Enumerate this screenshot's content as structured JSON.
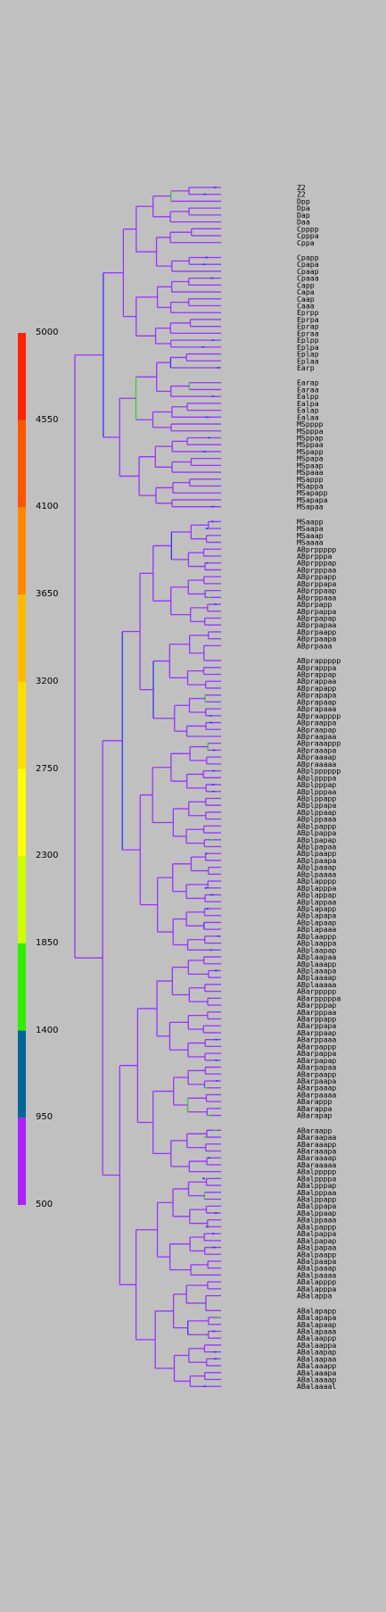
{
  "chart_data": {
    "type": "dendrogram",
    "title": "",
    "color_scale": {
      "labels": [
        "5000",
        "4550",
        "4100",
        "3650",
        "3200",
        "2750",
        "2300",
        "1850",
        "1400",
        "950",
        "500"
      ],
      "bands": [
        {
          "from": 4550,
          "to": 5000,
          "color": "#ff2200"
        },
        {
          "from": 4100,
          "to": 4550,
          "color": "#ff5500"
        },
        {
          "from": 3650,
          "to": 4100,
          "color": "#ff8800"
        },
        {
          "from": 3200,
          "to": 3650,
          "color": "#ffbb00"
        },
        {
          "from": 2750,
          "to": 3200,
          "color": "#ffdd00"
        },
        {
          "from": 2300,
          "to": 2750,
          "color": "#ffff00"
        },
        {
          "from": 1850,
          "to": 2300,
          "color": "#ccff00"
        },
        {
          "from": 1400,
          "to": 1850,
          "color": "#33ee00"
        },
        {
          "from": 950,
          "to": 1400,
          "color": "#006699"
        },
        {
          "from": 500,
          "to": 950,
          "color": "#aa22ff"
        }
      ]
    },
    "branch_color": "#9933ff",
    "highlight_colors": [
      "#3333ff",
      "#33cc33"
    ],
    "leaves": [
      {
        "group": 0,
        "names": [
          "Z2",
          "Z2",
          "Dpp",
          "Dpa",
          "Dap",
          "Daa",
          "Cpppp",
          "Cpppa",
          "Cppa"
        ]
      },
      {
        "group": 1,
        "names": [
          "Cpapp",
          "Cpapa",
          "Cpaap",
          "Cpaaa",
          "Capp",
          "Capa",
          "Caap",
          "Caaa",
          "Eprpp",
          "Eprpa",
          "Eprap",
          "Epraa",
          "Eplpp",
          "Eplpa",
          "Eplap",
          "Eplaa",
          "Earp"
        ]
      },
      {
        "group": 2,
        "names": [
          "Earap",
          "Earaa",
          "Ealpp",
          "Ealpa",
          "Ealap",
          "Ealaa",
          "MSpppp",
          "MSpppa",
          "MSppap",
          "MSppaa",
          "MSpapp",
          "MSpapa",
          "MSpaap",
          "MSpaaa",
          "MSappp",
          "MSappa",
          "MSapapp",
          "MSapapa",
          "MSapaa"
        ]
      },
      {
        "group": 3,
        "names": [
          "MSaapp",
          "MSaapa",
          "MSaaap",
          "MSaaaa",
          "ABprppppp",
          "ABprpppa",
          "ABprpppap",
          "ABprpppaa",
          "ABprppapp",
          "ABprppapa",
          "ABprppaap",
          "ABprppaaa",
          "ABprpapp",
          "ABprpappa",
          "ABprpapap",
          "ABprpapaa",
          "ABprpaapp",
          "ABprpaapa",
          "ABprpaaa"
        ]
      },
      {
        "group": 4,
        "names": [
          "ABprappppp",
          "ABprapppa",
          "ABprappap",
          "ABprappaa",
          "ABprapapp",
          "ABprapapa",
          "ABprapaap",
          "ABprapaaa",
          "ABpraapppp",
          "ABpraappa",
          "ABpraapap",
          "ABpraapaa",
          "ABpraaappp",
          "ABpraaapa",
          "ABpraaaap",
          "ABpraaaaa",
          "ABplpppppp",
          "ABplppppa",
          "ABplpppap",
          "ABplpppaa",
          "ABplppapp",
          "ABplppapa",
          "ABplppaap",
          "ABplppaaa",
          "ABplpappp",
          "ABplpappa",
          "ABplpapap",
          "ABplpapaa",
          "ABplpaapp",
          "ABplpaapa",
          "ABplpaaap",
          "ABplpaaaa",
          "ABplapppp",
          "ABplapppa",
          "ABplappap",
          "ABplappaa",
          "ABplapapp",
          "ABplapapa",
          "ABplapaap",
          "ABplapaaa",
          "ABplaappp",
          "ABplaappa",
          "ABplaapap",
          "ABplaapaa",
          "ABplaaapp",
          "ABplaaapa",
          "ABplaaaap",
          "ABplaaaaa",
          "ABarppppp",
          "ABarpppppa",
          "ABarpppap",
          "ABarpppaa",
          "ABarppapp",
          "ABarppapa",
          "ABarppaap",
          "ABarppaaa",
          "ABarpappp",
          "ABarpappa",
          "ABarpapap",
          "ABarpapaa",
          "ABarpaapp",
          "ABarpaapa",
          "ABarpaaap",
          "ABarpaaaa",
          "ABarappp",
          "ABarappa",
          "ABarapap"
        ]
      },
      {
        "group": 5,
        "names": [
          "ABaraapp",
          "ABaraapaa",
          "ABaraaapp",
          "ABaraaapa",
          "ABaraaaap",
          "ABaraaaaa",
          "ABalppppp",
          "ABalppppa",
          "ABalpppap",
          "ABalpppaa",
          "ABalppapp",
          "ABalppapa",
          "ABalppaap",
          "ABalppaaa",
          "ABalpappp",
          "ABalpappa",
          "ABalpapap",
          "ABalpapaa",
          "ABalpaapp",
          "ABalpaapa",
          "ABalpaaap",
          "ABalpaaaa",
          "ABalapppp",
          "ABalapppa",
          "ABalappa"
        ]
      },
      {
        "group": 6,
        "names": [
          "ABalapapp",
          "ABalapapa",
          "ABalapaap",
          "ABalapaaa",
          "ABalaappp",
          "ABalaappa",
          "ABalaapap",
          "ABalaapaa",
          "ABalaaapp",
          "ABalaaapa",
          "ABalaaaap",
          "ABalaaaal"
        ]
      }
    ]
  }
}
